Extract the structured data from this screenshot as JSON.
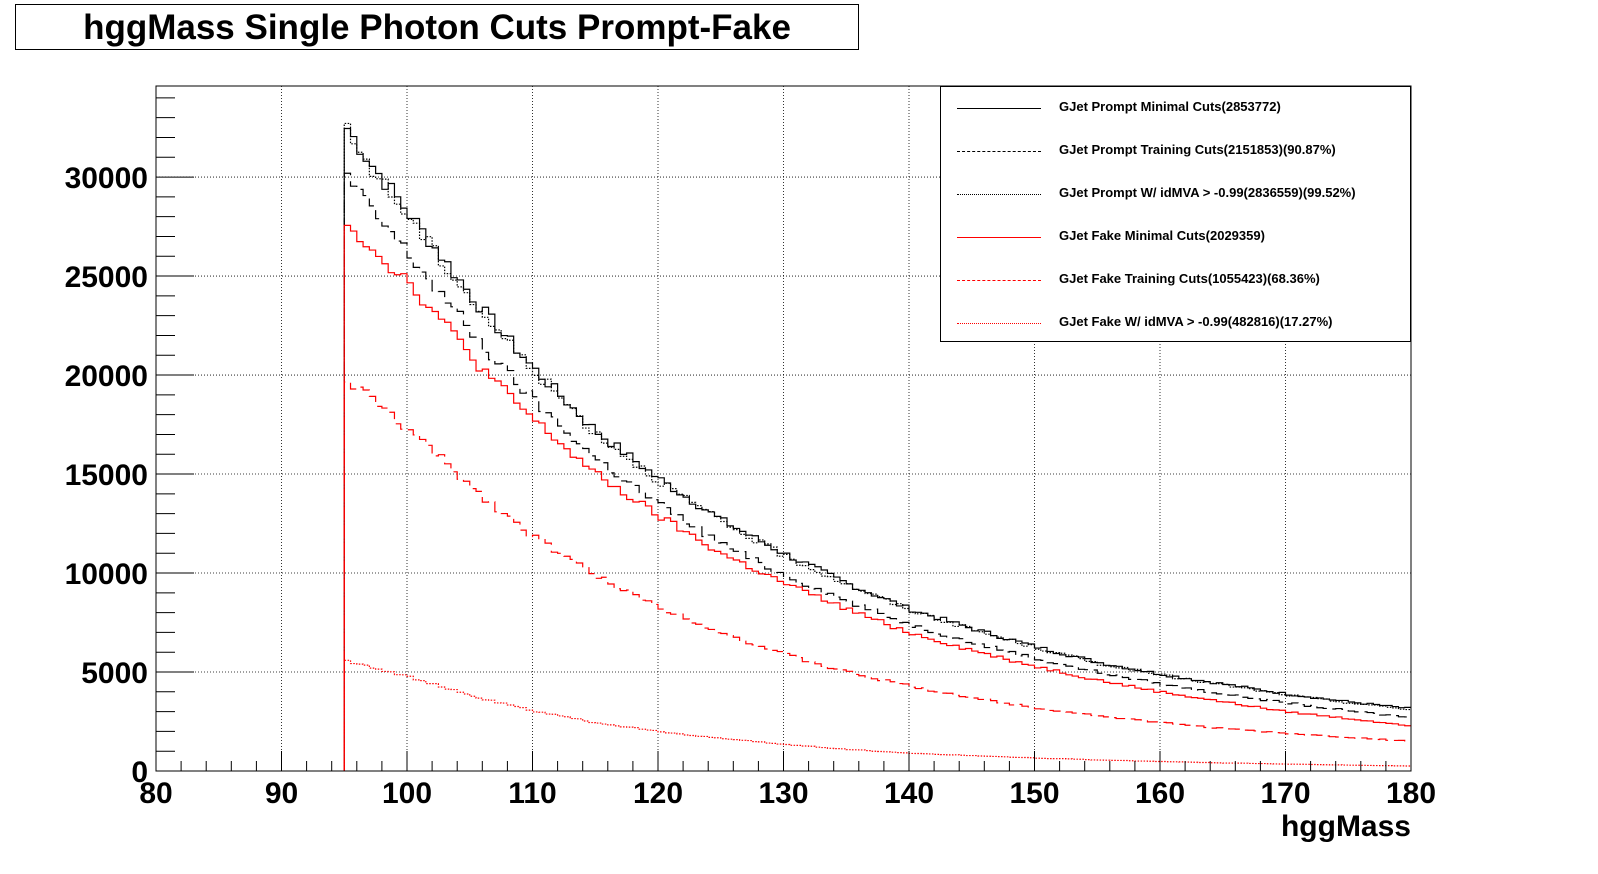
{
  "chart_data": {
    "type": "line",
    "title": "hggMass Single Photon Cuts Prompt-Fake",
    "xlabel": "hggMass",
    "ylabel": "",
    "xlim": [
      80,
      180
    ],
    "ylim": [
      0,
      34600
    ],
    "x_ticks": [
      80,
      90,
      100,
      110,
      120,
      130,
      140,
      150,
      160,
      170,
      180
    ],
    "x_tick_labels": [
      "80",
      "90",
      "100",
      "110",
      "120",
      "130",
      "140",
      "150",
      "160",
      "170",
      "180"
    ],
    "y_ticks": [
      0,
      5000,
      10000,
      15000,
      20000,
      25000,
      30000
    ],
    "y_tick_labels": [
      "0",
      "5000",
      "10000",
      "15000",
      "20000",
      "25000",
      "30000"
    ],
    "grid": true,
    "legend_position": "top-right",
    "x": [
      95,
      97,
      100,
      103,
      106,
      110,
      115,
      120,
      125,
      130,
      135,
      140,
      145,
      150,
      155,
      160,
      165,
      170,
      175,
      180
    ],
    "series": [
      {
        "name": "GJet Prompt Minimal Cuts(2853772)",
        "color": "#000000",
        "style": "solid",
        "values": [
          32700,
          30800,
          28300,
          25800,
          23300,
          20400,
          17200,
          14800,
          12700,
          11000,
          9500,
          8200,
          7200,
          6300,
          5500,
          4900,
          4400,
          3900,
          3500,
          3150
        ]
      },
      {
        "name": "GJet Prompt Training Cuts(2151853)(90.87%)",
        "color": "#000000",
        "style": "dashed",
        "values": [
          30200,
          28500,
          26200,
          23900,
          21500,
          18800,
          15800,
          13500,
          11500,
          9900,
          8600,
          7400,
          6500,
          5700,
          5000,
          4400,
          3900,
          3450,
          3050,
          2700
        ]
      },
      {
        "name": "GJet Prompt W/ idMVA > -0.99(2836559)(99.52%)",
        "color": "#000000",
        "style": "dotted",
        "values": [
          32500,
          30600,
          28100,
          25600,
          23100,
          20300,
          17100,
          14700,
          12600,
          10900,
          9450,
          8150,
          7150,
          6250,
          5450,
          4850,
          4350,
          3850,
          3450,
          3100
        ]
      },
      {
        "name": "GJet Fake Minimal Cuts(2029359)",
        "color": "#ff0000",
        "style": "solid",
        "values": [
          28000,
          26500,
          24800,
          22600,
          20300,
          17800,
          15000,
          12900,
          11000,
          9500,
          8200,
          7000,
          6100,
          5300,
          4600,
          4000,
          3500,
          3000,
          2650,
          2300
        ]
      },
      {
        "name": "GJet Fake Training Cuts(1055423)(68.36%)",
        "color": "#ff0000",
        "style": "dashed",
        "values": [
          19800,
          18900,
          17300,
          15600,
          13900,
          11900,
          9900,
          8300,
          7000,
          5900,
          5000,
          4300,
          3700,
          3200,
          2800,
          2450,
          2150,
          1900,
          1700,
          1500
        ]
      },
      {
        "name": "GJet Fake W/ idMVA > -0.99(482816)(17.27%)",
        "color": "#ff0000",
        "style": "dotted",
        "values": [
          5600,
          5300,
          4800,
          4200,
          3650,
          3050,
          2450,
          2000,
          1650,
          1350,
          1100,
          900,
          780,
          660,
          560,
          480,
          410,
          350,
          300,
          250
        ]
      }
    ]
  }
}
